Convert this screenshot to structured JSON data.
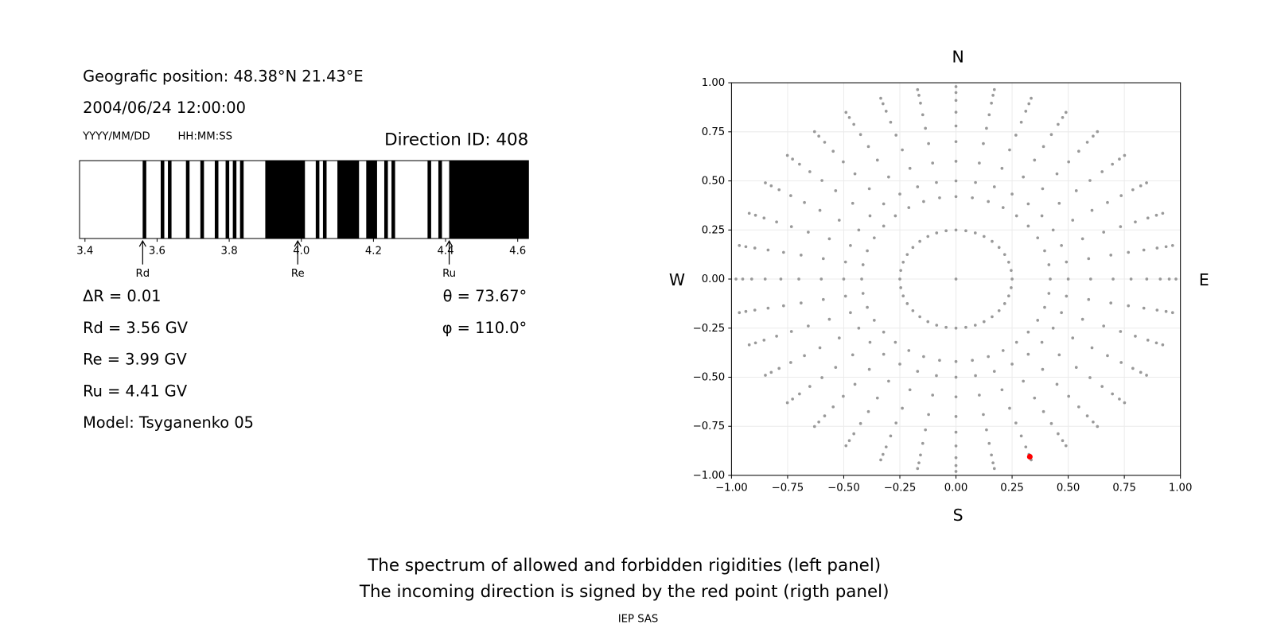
{
  "chart_data": [
    {
      "type": "spectrum",
      "text_lines": {
        "position": "Geografic position: 48.38°N 21.43°E",
        "datetime": "2004/06/24 12:00:00",
        "date_format": "YYYY/MM/DD",
        "time_format": "HH:MM:SS",
        "direction": "Direction ID: 408",
        "delta": "ΔR = 0.01",
        "rd": "Rd = 3.56 GV",
        "re": "Re = 3.99 GV",
        "ru": "Ru = 4.41 GV",
        "model": "Model: Tsyganenko 05",
        "theta": "θ = 73.67°",
        "phi": "φ = 110.0°"
      },
      "xlim": [
        3.385,
        4.63
      ],
      "xticks": [
        3.4,
        3.6,
        3.8,
        {
          "value": 4.0,
          "label": "4.0"
        },
        4.2,
        4.4,
        4.6
      ],
      "color": "#000000",
      "bands": [
        [
          3.56,
          3.57
        ],
        [
          3.61,
          3.62
        ],
        [
          3.63,
          3.64
        ],
        [
          3.68,
          3.69
        ],
        [
          3.72,
          3.73
        ],
        [
          3.76,
          3.77
        ],
        [
          3.79,
          3.8
        ],
        [
          3.81,
          3.82
        ],
        [
          3.83,
          3.84
        ],
        [
          3.9,
          4.01
        ],
        [
          4.04,
          4.05
        ],
        [
          4.06,
          4.07
        ],
        [
          4.1,
          4.16
        ],
        [
          4.18,
          4.21
        ],
        [
          4.23,
          4.24
        ],
        [
          4.25,
          4.26
        ],
        [
          4.35,
          4.36
        ],
        [
          4.38,
          4.39
        ],
        [
          4.41,
          4.63
        ]
      ],
      "markers": [
        {
          "label": "Rd",
          "value": 3.56
        },
        {
          "label": "Re",
          "value": 3.99
        },
        {
          "label": "Ru",
          "value": 4.41
        }
      ]
    },
    {
      "type": "scatter",
      "compass": {
        "north": "N",
        "south": "S",
        "west": "W",
        "east": "E"
      },
      "xlim": [
        -1,
        1
      ],
      "ylim": [
        -1,
        1
      ],
      "grid": true,
      "xticks": [
        {
          "value": -1,
          "label": "−1.00"
        },
        {
          "value": -0.75,
          "label": "−0.75"
        },
        {
          "value": -0.5,
          "label": "−0.50"
        },
        {
          "value": -0.25,
          "label": "−0.25"
        },
        {
          "value": 0,
          "label": "0.00"
        },
        {
          "value": 0.25,
          "label": "0.25"
        },
        {
          "value": 0.5,
          "label": "0.50"
        },
        {
          "value": 0.75,
          "label": "0.75"
        },
        {
          "value": 1,
          "label": "1.00"
        }
      ],
      "yticks": [
        {
          "value": -1,
          "label": "−1.00"
        },
        {
          "value": -0.75,
          "label": "−0.75"
        },
        {
          "value": -0.5,
          "label": "−0.50"
        },
        {
          "value": -0.25,
          "label": "−0.25"
        },
        {
          "value": 0,
          "label": "0.00"
        },
        {
          "value": 0.25,
          "label": "0.25"
        },
        {
          "value": 0.5,
          "label": "0.50"
        },
        {
          "value": 0.75,
          "label": "0.75"
        },
        {
          "value": 1,
          "label": "1.00"
        }
      ],
      "series": [
        {
          "color": "#999999",
          "x": [
            0,
            0.25,
            0.246,
            0.235,
            0.217,
            0.192,
            0.161,
            0.125,
            0.086,
            0.044,
            0,
            -0.044,
            -0.086,
            -0.125,
            -0.161,
            -0.192,
            -0.217,
            -0.235,
            -0.246,
            -0.25,
            -0.246,
            -0.235,
            -0.217,
            -0.192,
            -0.161,
            -0.125,
            -0.086,
            -0.044,
            0,
            0.044,
            0.086,
            0.125,
            0.161,
            0.192,
            0.217,
            0.235,
            0.246,
            0.42,
            0.414,
            0.395,
            0.364,
            0.322,
            0.27,
            0.21,
            0.144,
            0.073,
            0,
            -0.073,
            -0.144,
            -0.21,
            -0.27,
            -0.322,
            -0.364,
            -0.395,
            -0.414,
            -0.42,
            -0.414,
            -0.395,
            -0.364,
            -0.322,
            -0.27,
            -0.21,
            -0.144,
            -0.073,
            0,
            0.073,
            0.144,
            0.21,
            0.27,
            0.322,
            0.364,
            0.395,
            0.414,
            0.5,
            0.6,
            0.7,
            0.78,
            0.85,
            0.91,
            0.95,
            0.98,
            0.492,
            0.591,
            0.69,
            0.768,
            0.837,
            0.896,
            0.936,
            0.965,
            0.47,
            0.564,
            0.658,
            0.733,
            0.799,
            0.855,
            0.893,
            0.921,
            0.433,
            0.52,
            0.606,
            0.675,
            0.736,
            0.788,
            0.823,
            0.849,
            0.383,
            0.46,
            0.536,
            0.597,
            0.651,
            0.697,
            0.728,
            0.751,
            0.322,
            0.386,
            0.45,
            0.502,
            0.547,
            0.585,
            0.611,
            0.63,
            0.25,
            0.3,
            0.35,
            0.39,
            0.425,
            0.455,
            0.475,
            0.49,
            0.171,
            0.205,
            0.239,
            0.267,
            0.291,
            0.311,
            0.325,
            0.335,
            0.087,
            0.104,
            0.122,
            0.136,
            0.148,
            0.158,
            0.165,
            0.171,
            0,
            0,
            0,
            0,
            0,
            0,
            0,
            0,
            -0.087,
            -0.104,
            -0.122,
            -0.136,
            -0.148,
            -0.158,
            -0.165,
            -0.171,
            -0.171,
            -0.205,
            -0.239,
            -0.267,
            -0.291,
            -0.311,
            -0.325,
            -0.335,
            -0.25,
            -0.3,
            -0.35,
            -0.39,
            -0.425,
            -0.455,
            -0.475,
            -0.49,
            -0.322,
            -0.386,
            -0.45,
            -0.502,
            -0.547,
            -0.585,
            -0.611,
            -0.63,
            -0.383,
            -0.46,
            -0.536,
            -0.597,
            -0.651,
            -0.697,
            -0.728,
            -0.751,
            -0.433,
            -0.52,
            -0.606,
            -0.675,
            -0.736,
            -0.788,
            -0.823,
            -0.849,
            -0.47,
            -0.564,
            -0.658,
            -0.733,
            -0.799,
            -0.855,
            -0.893,
            -0.921,
            -0.492,
            -0.591,
            -0.69,
            -0.768,
            -0.837,
            -0.896,
            -0.936,
            -0.965,
            -0.5,
            -0.6,
            -0.7,
            -0.78,
            -0.85,
            -0.91,
            -0.95,
            -0.98,
            -0.492,
            -0.591,
            -0.69,
            -0.768,
            -0.837,
            -0.896,
            -0.936,
            -0.965,
            -0.47,
            -0.564,
            -0.658,
            -0.733,
            -0.799,
            -0.855,
            -0.893,
            -0.921,
            -0.433,
            -0.52,
            -0.606,
            -0.675,
            -0.736,
            -0.788,
            -0.823,
            -0.849,
            -0.383,
            -0.46,
            -0.536,
            -0.597,
            -0.651,
            -0.697,
            -0.728,
            -0.751,
            -0.322,
            -0.386,
            -0.45,
            -0.502,
            -0.547,
            -0.585,
            -0.611,
            -0.63,
            -0.25,
            -0.3,
            -0.35,
            -0.39,
            -0.425,
            -0.455,
            -0.475,
            -0.49,
            -0.171,
            -0.205,
            -0.239,
            -0.267,
            -0.291,
            -0.311,
            -0.325,
            -0.335,
            -0.087,
            -0.104,
            -0.122,
            -0.136,
            -0.148,
            -0.158,
            -0.165,
            -0.171,
            0,
            0,
            0,
            0,
            0,
            0,
            0,
            0,
            0.087,
            0.104,
            0.122,
            0.136,
            0.148,
            0.158,
            0.165,
            0.171,
            0.171,
            0.205,
            0.239,
            0.267,
            0.291,
            0.311,
            0.325,
            0.335,
            0.25,
            0.3,
            0.35,
            0.39,
            0.425,
            0.455,
            0.475,
            0.49,
            0.322,
            0.386,
            0.45,
            0.502,
            0.547,
            0.585,
            0.611,
            0.63,
            0.383,
            0.46,
            0.536,
            0.597,
            0.651,
            0.697,
            0.728,
            0.751,
            0.433,
            0.52,
            0.606,
            0.675,
            0.736,
            0.788,
            0.823,
            0.849,
            0.47,
            0.564,
            0.658,
            0.733,
            0.799,
            0.855,
            0.893,
            0.921,
            0.492,
            0.591,
            0.69,
            0.768,
            0.837,
            0.896,
            0.936,
            0.965
          ],
          "y": [
            0,
            0,
            0.044,
            0.086,
            0.125,
            0.161,
            0.192,
            0.217,
            0.235,
            0.246,
            0.25,
            0.246,
            0.235,
            0.217,
            0.192,
            0.161,
            0.125,
            0.086,
            0.044,
            0,
            -0.044,
            -0.086,
            -0.125,
            -0.161,
            -0.192,
            -0.217,
            -0.235,
            -0.246,
            -0.25,
            -0.246,
            -0.235,
            -0.217,
            -0.192,
            -0.161,
            -0.125,
            -0.086,
            -0.044,
            0,
            0.073,
            0.144,
            0.21,
            0.27,
            0.322,
            0.364,
            0.395,
            0.414,
            0.42,
            0.414,
            0.395,
            0.364,
            0.322,
            0.27,
            0.21,
            0.144,
            0.073,
            0,
            -0.073,
            -0.144,
            -0.21,
            -0.27,
            -0.322,
            -0.364,
            -0.395,
            -0.414,
            -0.42,
            -0.414,
            -0.395,
            -0.364,
            -0.322,
            -0.27,
            -0.21,
            -0.144,
            -0.073,
            0,
            0,
            0,
            0,
            0,
            0,
            0,
            0,
            0.087,
            0.104,
            0.122,
            0.136,
            0.148,
            0.158,
            0.165,
            0.171,
            0.171,
            0.205,
            0.239,
            0.267,
            0.291,
            0.311,
            0.325,
            0.335,
            0.25,
            0.3,
            0.35,
            0.39,
            0.425,
            0.455,
            0.475,
            0.49,
            0.322,
            0.386,
            0.45,
            0.502,
            0.547,
            0.585,
            0.611,
            0.63,
            0.383,
            0.46,
            0.536,
            0.597,
            0.651,
            0.697,
            0.728,
            0.751,
            0.433,
            0.52,
            0.606,
            0.675,
            0.736,
            0.788,
            0.823,
            0.849,
            0.47,
            0.564,
            0.658,
            0.733,
            0.799,
            0.855,
            0.893,
            0.921,
            0.492,
            0.591,
            0.69,
            0.768,
            0.837,
            0.896,
            0.936,
            0.965,
            0.5,
            0.6,
            0.7,
            0.78,
            0.85,
            0.91,
            0.95,
            0.98,
            0.492,
            0.591,
            0.69,
            0.768,
            0.837,
            0.896,
            0.936,
            0.965,
            0.47,
            0.564,
            0.658,
            0.733,
            0.799,
            0.855,
            0.893,
            0.921,
            0.433,
            0.52,
            0.606,
            0.675,
            0.736,
            0.788,
            0.823,
            0.849,
            0.383,
            0.46,
            0.536,
            0.597,
            0.651,
            0.697,
            0.728,
            0.751,
            0.322,
            0.386,
            0.45,
            0.502,
            0.547,
            0.585,
            0.611,
            0.63,
            0.25,
            0.3,
            0.35,
            0.39,
            0.425,
            0.455,
            0.475,
            0.49,
            0.171,
            0.205,
            0.239,
            0.267,
            0.291,
            0.311,
            0.325,
            0.335,
            0.087,
            0.104,
            0.122,
            0.136,
            0.148,
            0.158,
            0.165,
            0.171,
            0,
            0,
            0,
            0,
            0,
            0,
            0,
            0,
            -0.087,
            -0.104,
            -0.122,
            -0.136,
            -0.148,
            -0.158,
            -0.165,
            -0.171,
            -0.171,
            -0.205,
            -0.239,
            -0.267,
            -0.291,
            -0.311,
            -0.325,
            -0.335,
            -0.25,
            -0.3,
            -0.35,
            -0.39,
            -0.425,
            -0.455,
            -0.475,
            -0.49,
            -0.322,
            -0.386,
            -0.45,
            -0.502,
            -0.547,
            -0.585,
            -0.611,
            -0.63,
            -0.383,
            -0.46,
            -0.536,
            -0.597,
            -0.651,
            -0.697,
            -0.728,
            -0.751,
            -0.433,
            -0.52,
            -0.606,
            -0.675,
            -0.736,
            -0.788,
            -0.823,
            -0.849,
            -0.47,
            -0.564,
            -0.658,
            -0.733,
            -0.799,
            -0.855,
            -0.893,
            -0.921,
            -0.492,
            -0.591,
            -0.69,
            -0.768,
            -0.837,
            -0.896,
            -0.936,
            -0.965,
            -0.5,
            -0.6,
            -0.7,
            -0.78,
            -0.85,
            -0.91,
            -0.95,
            -0.98,
            -0.492,
            -0.591,
            -0.69,
            -0.768,
            -0.837,
            -0.896,
            -0.936,
            -0.965,
            -0.47,
            -0.564,
            -0.658,
            -0.733,
            -0.799,
            -0.855,
            -0.893,
            -0.921,
            -0.433,
            -0.52,
            -0.606,
            -0.675,
            -0.736,
            -0.788,
            -0.823,
            -0.849,
            -0.383,
            -0.46,
            -0.536,
            -0.597,
            -0.651,
            -0.697,
            -0.728,
            -0.751,
            -0.322,
            -0.386,
            -0.45,
            -0.502,
            -0.547,
            -0.585,
            -0.611,
            -0.63,
            -0.25,
            -0.3,
            -0.35,
            -0.39,
            -0.425,
            -0.455,
            -0.475,
            -0.49,
            -0.171,
            -0.205,
            -0.239,
            -0.267,
            -0.291,
            -0.311,
            -0.325,
            -0.335,
            -0.087,
            -0.104,
            -0.122,
            -0.136,
            -0.148,
            -0.158,
            -0.165,
            -0.171
          ]
        },
        {
          "color": "#ff0000",
          "x": [
            0.329
          ],
          "y": [
            -0.905
          ]
        }
      ]
    }
  ],
  "caption": [
    "The spectrum of allowed and forbidden rigidities (left panel)",
    "The incoming direction is signed by the red point (rigth panel)"
  ],
  "credit": "IEP SAS"
}
